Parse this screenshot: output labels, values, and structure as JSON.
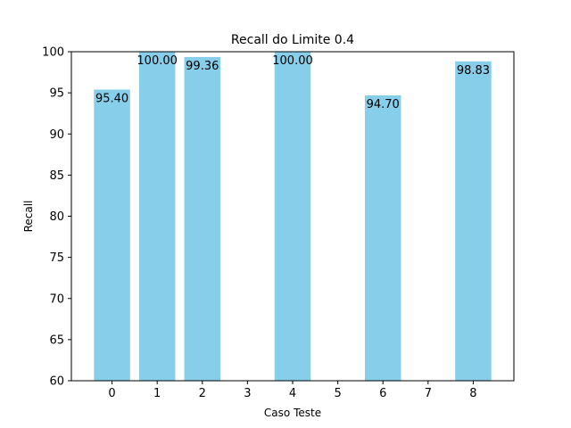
{
  "chart_data": {
    "type": "bar",
    "title": "Recall do Limite 0.4",
    "xlabel": "Caso Teste",
    "ylabel": "Recall",
    "x": [
      0,
      1,
      2,
      4,
      6,
      8
    ],
    "values": [
      95.4,
      100.0,
      99.36,
      100.0,
      94.7,
      98.83
    ],
    "data_labels": [
      "95.40",
      "100.00",
      "99.36",
      "100.00",
      "94.70",
      "98.83"
    ],
    "xticks": [
      "0",
      "1",
      "2",
      "3",
      "4",
      "5",
      "6",
      "7",
      "8"
    ],
    "yticks": [
      "60",
      "65",
      "70",
      "75",
      "80",
      "85",
      "90",
      "95",
      "100"
    ],
    "xlim": [
      -0.9,
      8.9
    ],
    "ylim": [
      60,
      100
    ],
    "grid": false,
    "bar_color": "#87ceeb"
  }
}
